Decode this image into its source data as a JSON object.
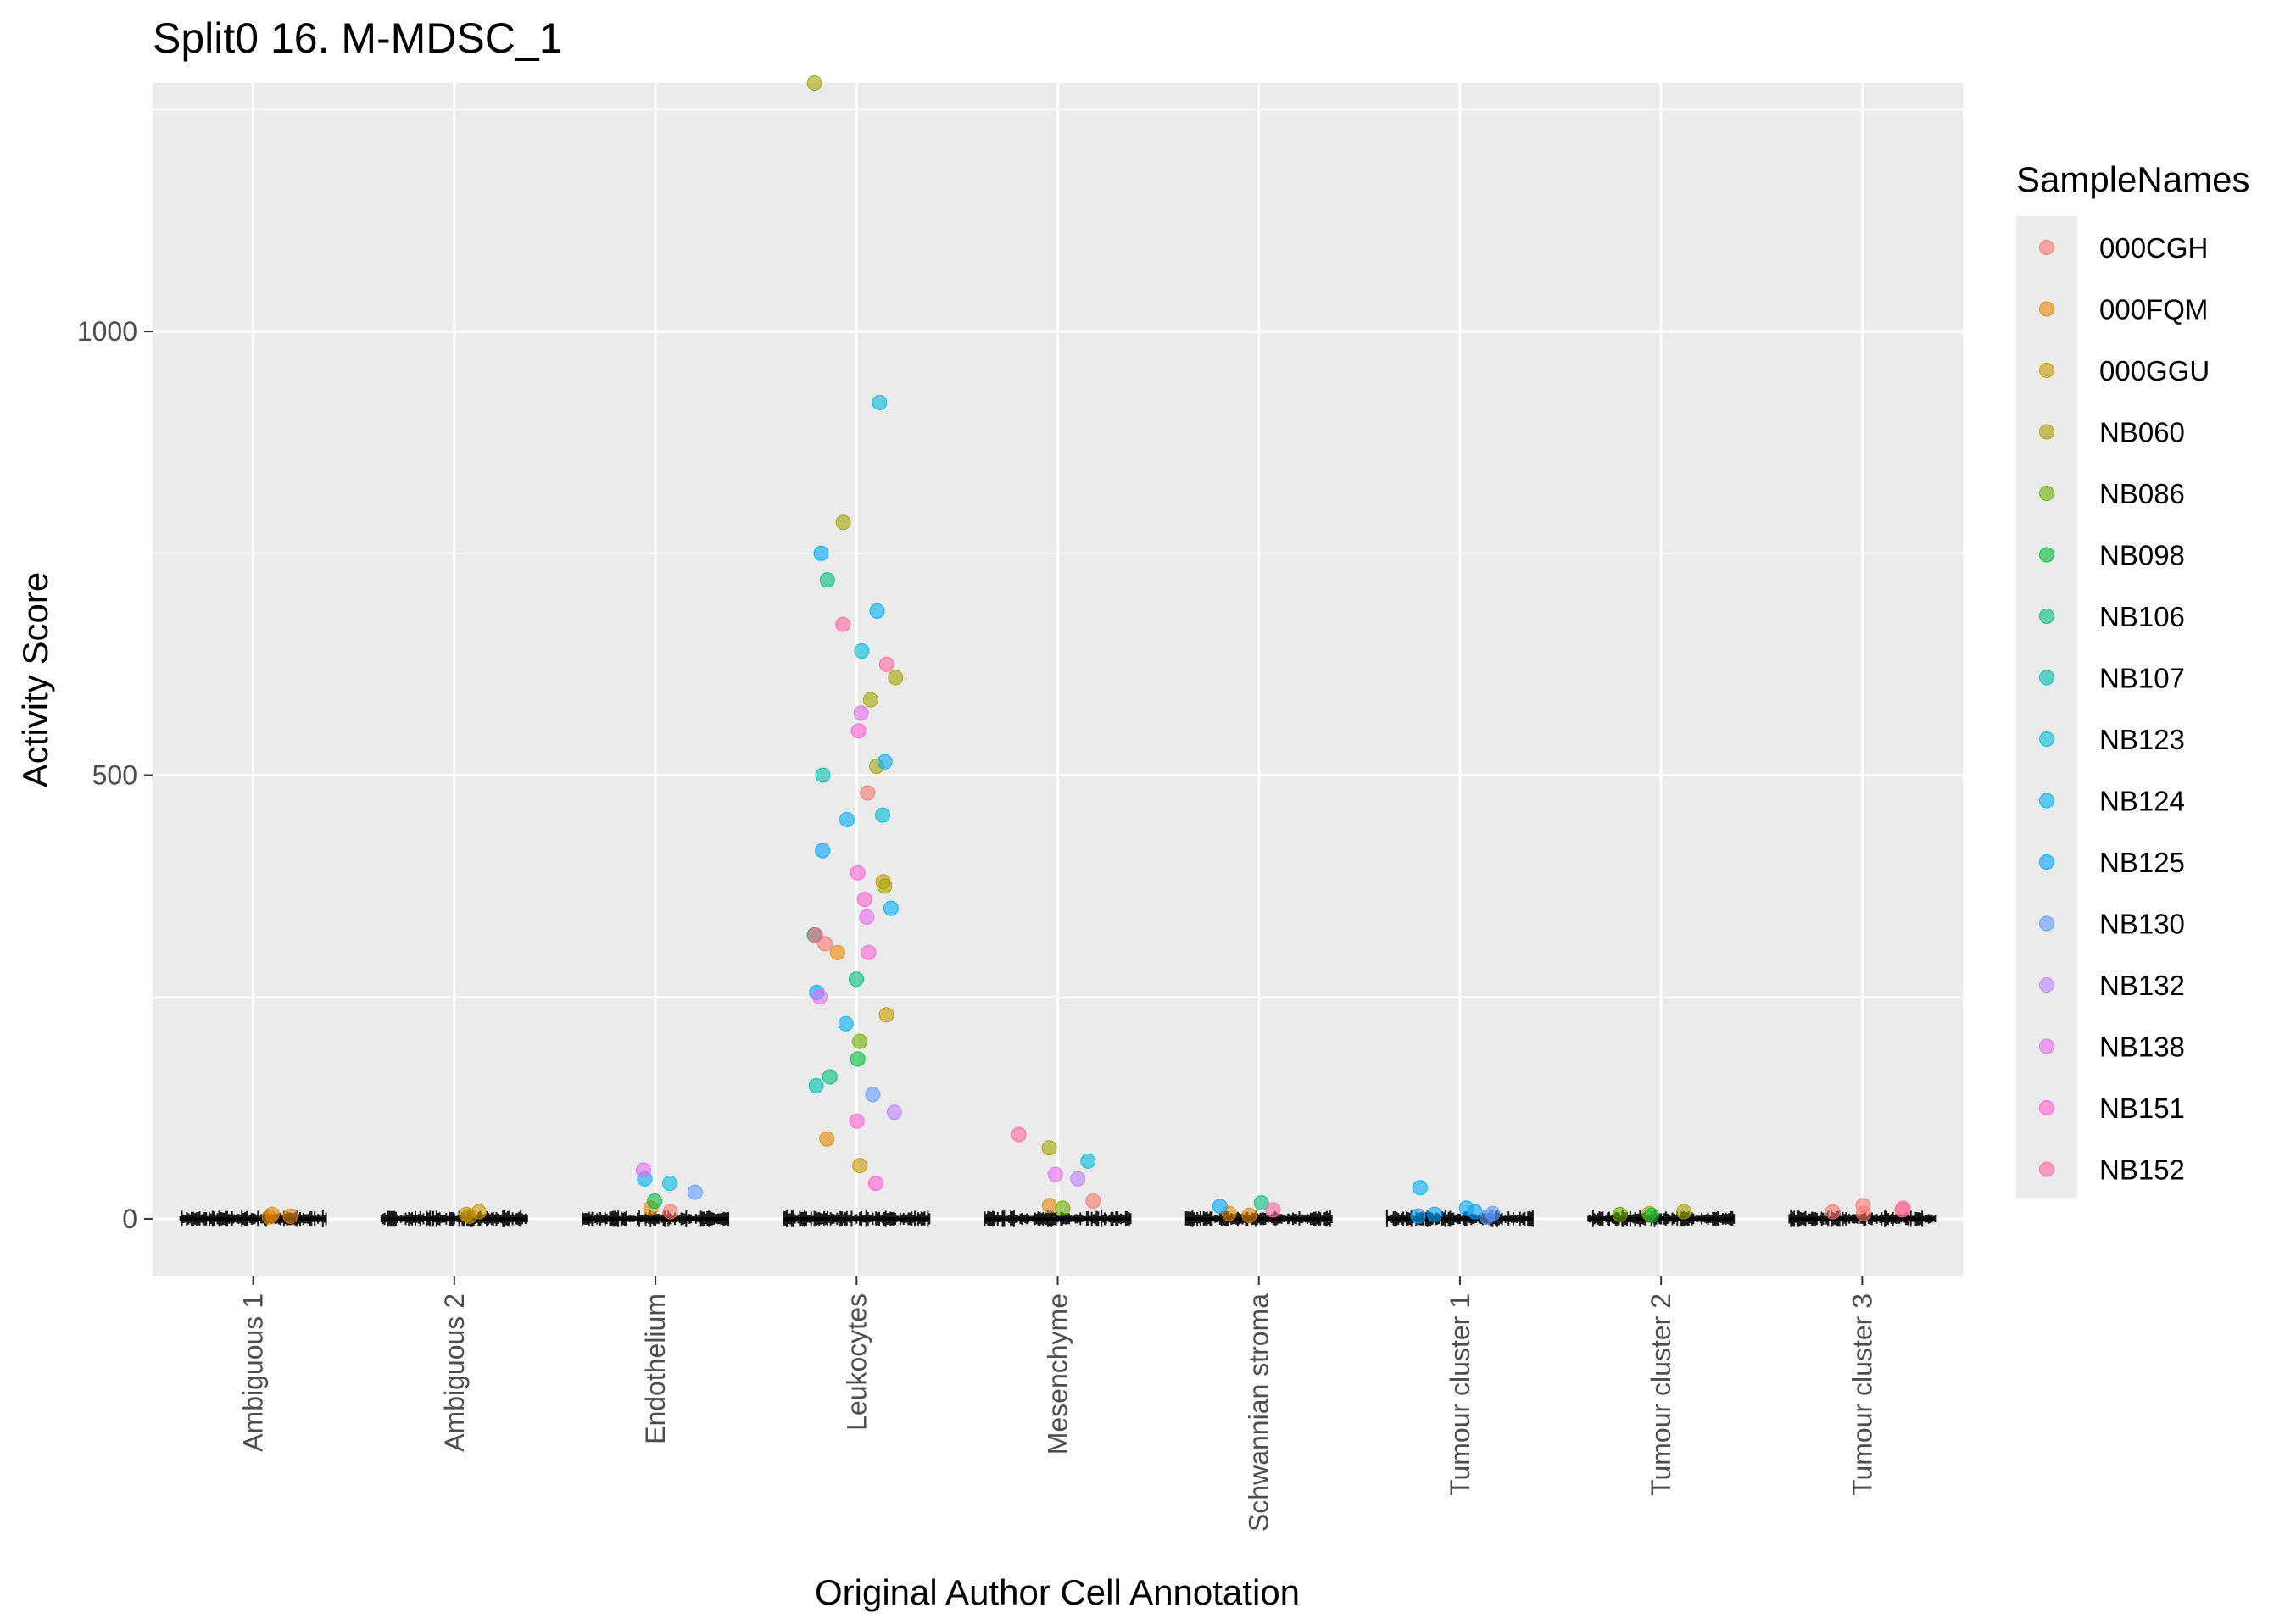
{
  "chart_data": {
    "type": "scatter",
    "title": "Split0 16. M-MDSC_1",
    "xlabel": "Original Author Cell Annotation",
    "ylabel": "Activity Score",
    "ylim": [
      -65,
      1280
    ],
    "y_ticks": [
      0,
      500,
      1000
    ],
    "y_tick_labels": [
      "0",
      "500",
      "1000"
    ],
    "grid": true,
    "background": "#ebebeb",
    "categories": [
      "Ambiguous 1",
      "Ambiguous 2",
      "Endothelium",
      "Leukocytes",
      "Mesenchyme",
      "Schwannian stroma",
      "Tumour cluster 1",
      "Tumour cluster 2",
      "Tumour cluster 3"
    ],
    "legend": {
      "title": "SampleNames",
      "position": "right",
      "entries": [
        {
          "name": "000CGH",
          "color": "#F8766D"
        },
        {
          "name": "000FQM",
          "color": "#E58700"
        },
        {
          "name": "000GGU",
          "color": "#C99800"
        },
        {
          "name": "NB060",
          "color": "#A3A500"
        },
        {
          "name": "NB086",
          "color": "#6BB100"
        },
        {
          "name": "NB098",
          "color": "#00BA38"
        },
        {
          "name": "NB106",
          "color": "#00BF7D"
        },
        {
          "name": "NB107",
          "color": "#00C0AF"
        },
        {
          "name": "NB123",
          "color": "#00BCD8"
        },
        {
          "name": "NB124",
          "color": "#00B0F6"
        },
        {
          "name": "NB125",
          "color": "#00A5FF"
        },
        {
          "name": "NB130",
          "color": "#619CFF"
        },
        {
          "name": "NB132",
          "color": "#B983FF"
        },
        {
          "name": "NB138",
          "color": "#E76BF3"
        },
        {
          "name": "NB151",
          "color": "#FD61D1"
        },
        {
          "name": "NB152",
          "color": "#FF67A4"
        }
      ]
    },
    "series": [
      {
        "name": "000CGH",
        "points": [
          [
            "Tumour cluster 3",
            15
          ],
          [
            "Tumour cluster 3",
            10
          ],
          [
            "Tumour cluster 3",
            8
          ],
          [
            "Tumour cluster 3",
            6
          ],
          [
            "Leukocytes",
            480
          ],
          [
            "Leukocytes",
            310
          ],
          [
            "Mesenchyme",
            20
          ],
          [
            "Endothelium",
            8
          ]
        ]
      },
      {
        "name": "000FQM",
        "points": [
          [
            "Ambiguous 1",
            5
          ],
          [
            "Ambiguous 1",
            3
          ],
          [
            "Ambiguous 1",
            2
          ],
          [
            "Schwannian stroma",
            6
          ],
          [
            "Schwannian stroma",
            4
          ],
          [
            "Endothelium",
            12
          ],
          [
            "Leukocytes",
            300
          ],
          [
            "Leukocytes",
            90
          ],
          [
            "Mesenchyme",
            15
          ]
        ]
      },
      {
        "name": "000GGU",
        "points": [
          [
            "Ambiguous 2",
            8
          ],
          [
            "Ambiguous 2",
            5
          ],
          [
            "Ambiguous 2",
            3
          ],
          [
            "Leukocytes",
            380
          ],
          [
            "Leukocytes",
            230
          ],
          [
            "Leukocytes",
            60
          ]
        ]
      },
      {
        "name": "NB060",
        "points": [
          [
            "Leukocytes",
            1280
          ],
          [
            "Leukocytes",
            785
          ],
          [
            "Leukocytes",
            610
          ],
          [
            "Leukocytes",
            585
          ],
          [
            "Leukocytes",
            510
          ],
          [
            "Leukocytes",
            375
          ],
          [
            "Mesenchyme",
            80
          ],
          [
            "Tumour cluster 2",
            8
          ],
          [
            "Tumour cluster 2",
            6
          ]
        ]
      },
      {
        "name": "NB086",
        "points": [
          [
            "Leukocytes",
            200
          ],
          [
            "Tumour cluster 2",
            5
          ],
          [
            "Mesenchyme",
            12
          ]
        ]
      },
      {
        "name": "NB098",
        "points": [
          [
            "Leukocytes",
            320
          ],
          [
            "Leukocytes",
            180
          ],
          [
            "Endothelium",
            20
          ],
          [
            "Tumour cluster 2",
            4
          ]
        ]
      },
      {
        "name": "NB106",
        "points": [
          [
            "Leukocytes",
            720
          ],
          [
            "Leukocytes",
            270
          ],
          [
            "Leukocytes",
            160
          ],
          [
            "Schwannian stroma",
            18
          ]
        ]
      },
      {
        "name": "NB107",
        "points": [
          [
            "Leukocytes",
            500
          ],
          [
            "Leukocytes",
            150
          ]
        ]
      },
      {
        "name": "NB123",
        "points": [
          [
            "Leukocytes",
            920
          ],
          [
            "Leukocytes",
            640
          ],
          [
            "Leukocytes",
            455
          ],
          [
            "Mesenchyme",
            65
          ],
          [
            "Endothelium",
            40
          ]
        ]
      },
      {
        "name": "NB124",
        "points": [
          [
            "Leukocytes",
            685
          ],
          [
            "Leukocytes",
            515
          ],
          [
            "Leukocytes",
            450
          ],
          [
            "Leukocytes",
            350
          ],
          [
            "Leukocytes",
            220
          ],
          [
            "Endothelium",
            45
          ],
          [
            "Tumour cluster 1",
            35
          ]
        ]
      },
      {
        "name": "NB125",
        "points": [
          [
            "Leukocytes",
            750
          ],
          [
            "Leukocytes",
            415
          ],
          [
            "Leukocytes",
            255
          ],
          [
            "Tumour cluster 1",
            12
          ],
          [
            "Tumour cluster 1",
            8
          ],
          [
            "Tumour cluster 1",
            5
          ],
          [
            "Tumour cluster 1",
            3
          ],
          [
            "Schwannian stroma",
            14
          ]
        ]
      },
      {
        "name": "NB130",
        "points": [
          [
            "Leukocytes",
            140
          ],
          [
            "Endothelium",
            30
          ],
          [
            "Tumour cluster 1",
            6
          ],
          [
            "Tumour cluster 1",
            2
          ]
        ]
      },
      {
        "name": "NB132",
        "points": [
          [
            "Leukocytes",
            120
          ],
          [
            "Mesenchyme",
            45
          ]
        ]
      },
      {
        "name": "NB138",
        "points": [
          [
            "Leukocytes",
            570
          ],
          [
            "Leukocytes",
            340
          ],
          [
            "Leukocytes",
            250
          ],
          [
            "Endothelium",
            55
          ],
          [
            "Mesenchyme",
            50
          ]
        ]
      },
      {
        "name": "NB151",
        "points": [
          [
            "Leukocytes",
            550
          ],
          [
            "Leukocytes",
            390
          ],
          [
            "Leukocytes",
            360
          ],
          [
            "Leukocytes",
            300
          ],
          [
            "Leukocytes",
            110
          ],
          [
            "Leukocytes",
            40
          ]
        ]
      },
      {
        "name": "NB152",
        "points": [
          [
            "Leukocytes",
            670
          ],
          [
            "Leukocytes",
            625
          ],
          [
            "Leukocytes",
            320
          ],
          [
            "Mesenchyme",
            95
          ],
          [
            "Schwannian stroma",
            10
          ],
          [
            "Tumour cluster 3",
            12
          ]
        ]
      }
    ]
  }
}
